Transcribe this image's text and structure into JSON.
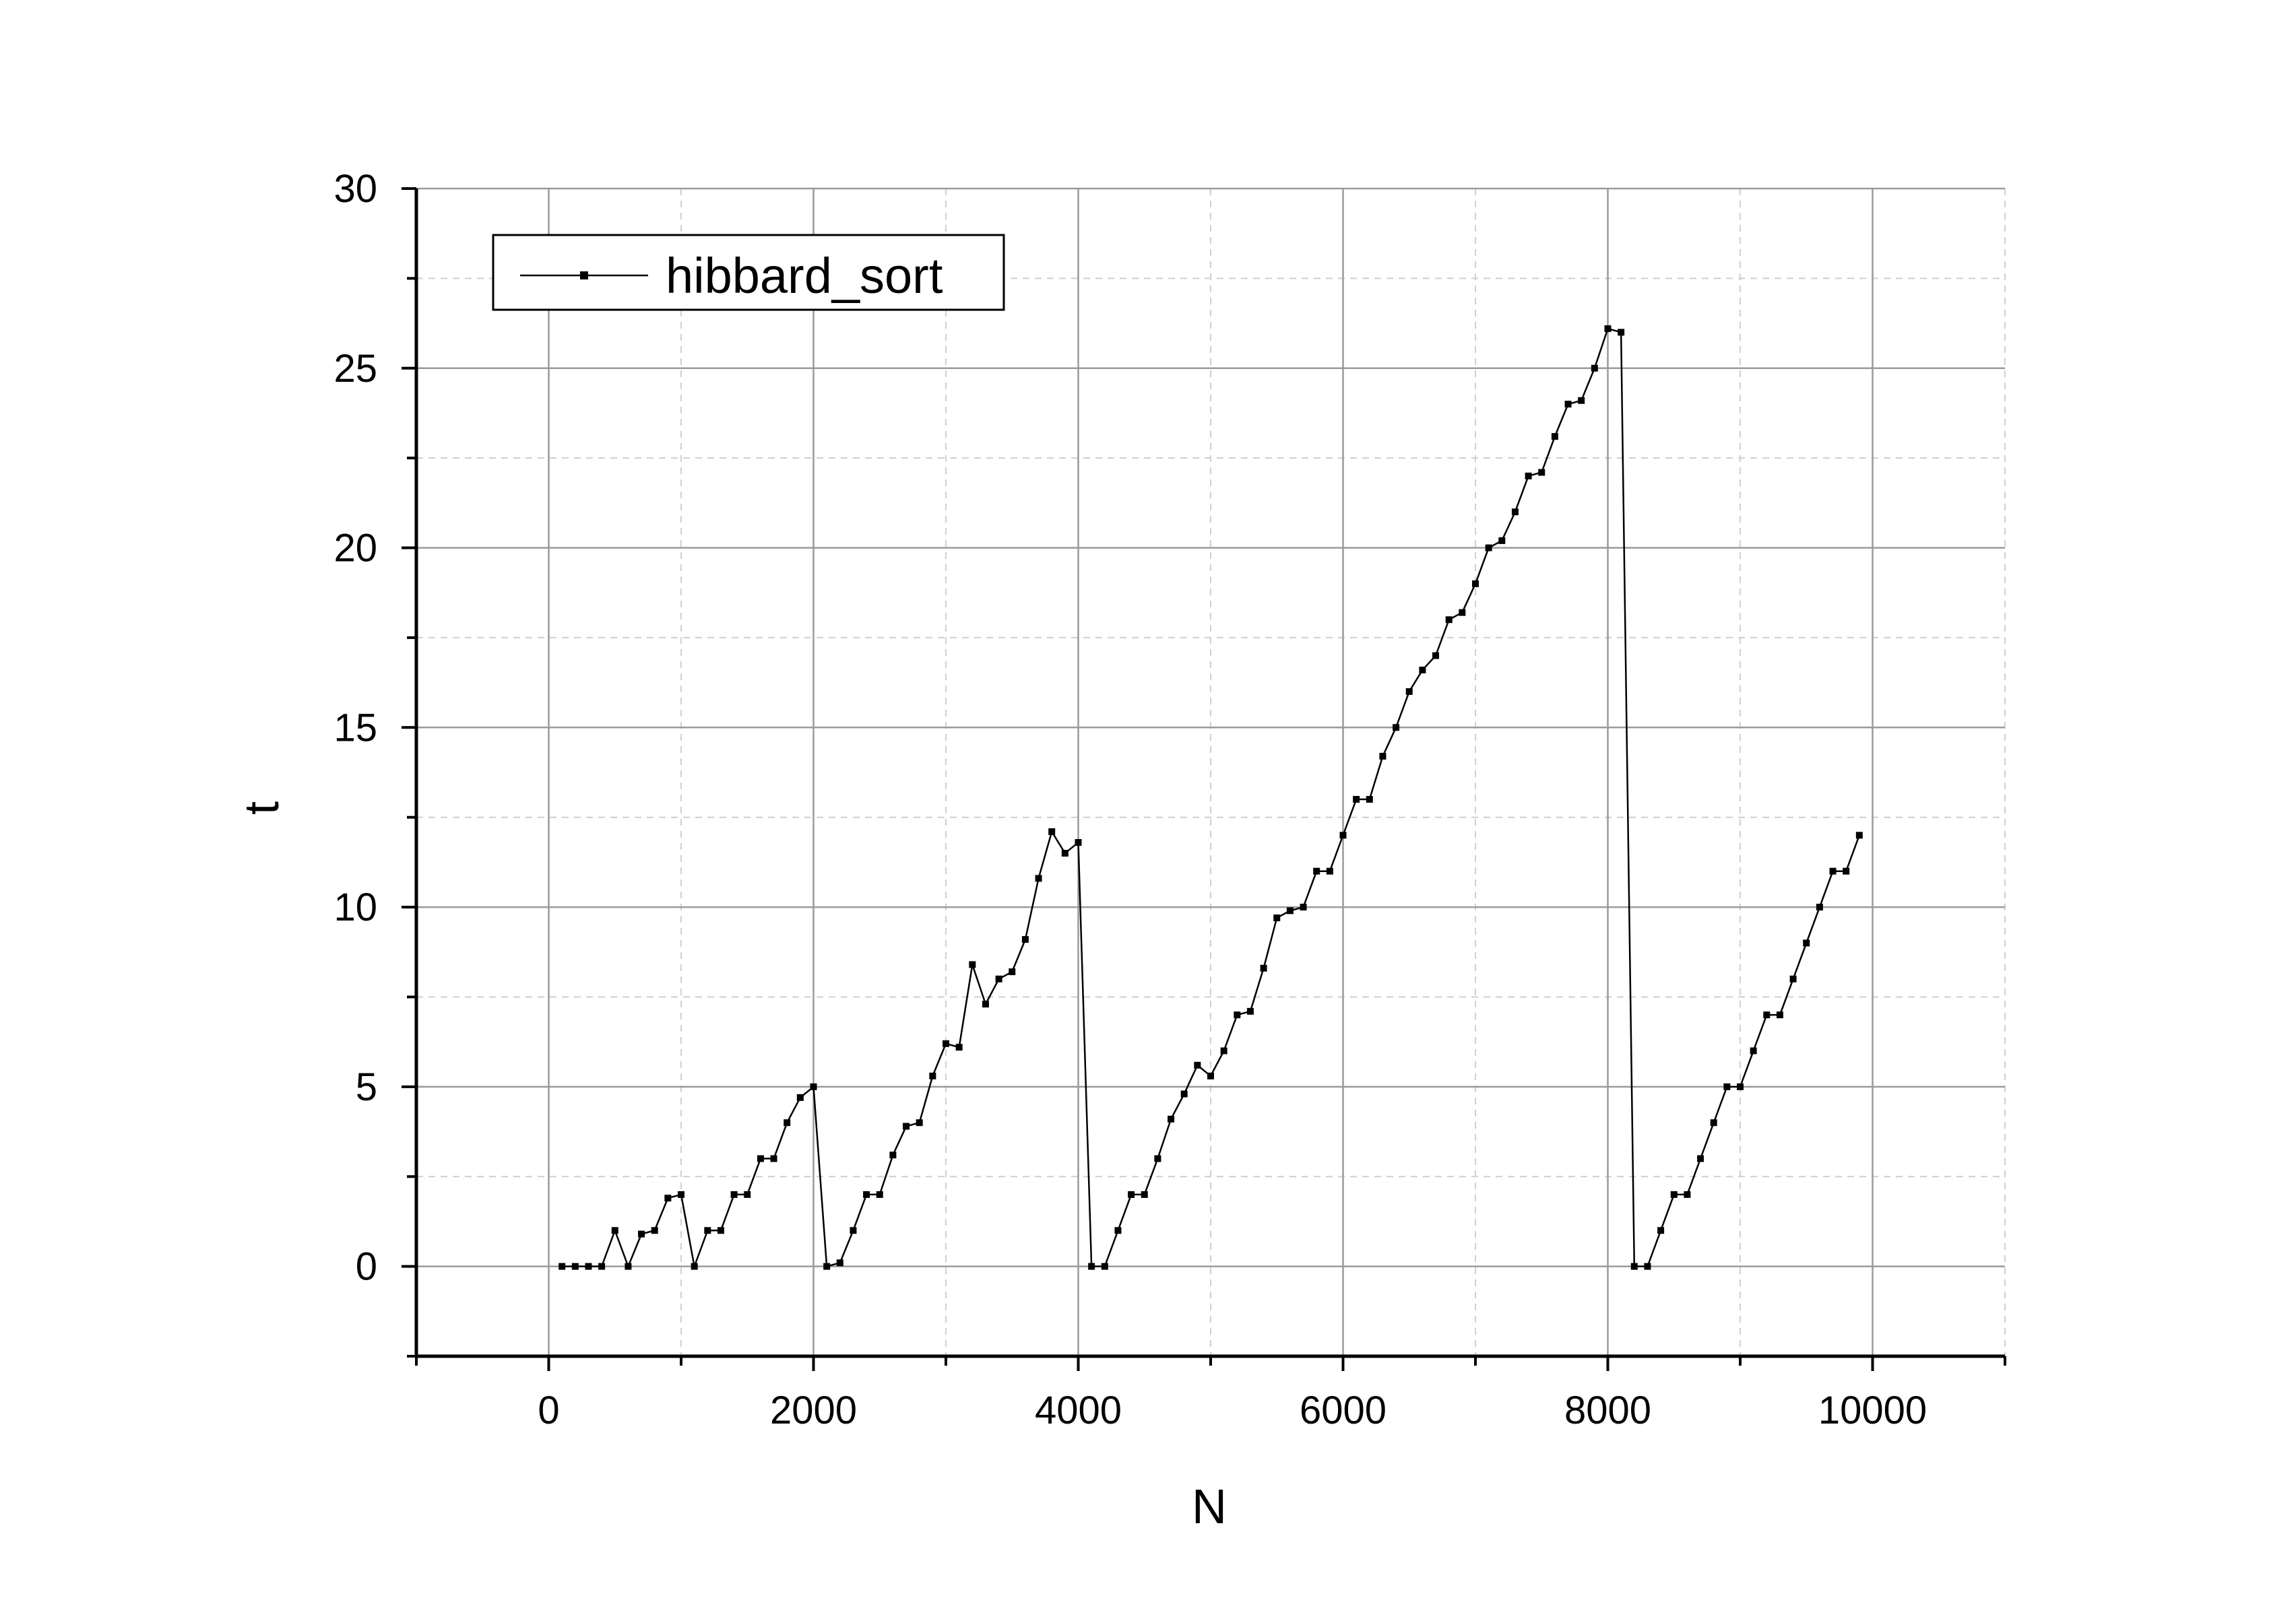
{
  "chart_data": {
    "type": "line",
    "title": "",
    "xlabel": "N",
    "ylabel": "t",
    "xlim": [
      -1000,
      11000
    ],
    "ylim": [
      -2.5,
      30
    ],
    "xticks": [
      0,
      2000,
      4000,
      6000,
      8000,
      10000
    ],
    "yticks": [
      0,
      5,
      10,
      15,
      20,
      25,
      30
    ],
    "grid": true,
    "legend": {
      "placement": "top-left",
      "entries": [
        "hibbard_sort"
      ]
    },
    "series": [
      {
        "name": "hibbard_sort",
        "color": "#000000",
        "marker": "square",
        "x": [
          100,
          200,
          300,
          400,
          500,
          600,
          700,
          800,
          900,
          1000,
          1100,
          1200,
          1300,
          1400,
          1500,
          1600,
          1700,
          1800,
          1900,
          2000,
          2100,
          2200,
          2300,
          2400,
          2500,
          2600,
          2700,
          2800,
          2900,
          3000,
          3100,
          3200,
          3300,
          3400,
          3500,
          3600,
          3700,
          3800,
          3900,
          4000,
          4100,
          4200,
          4300,
          4400,
          4500,
          4600,
          4700,
          4800,
          4900,
          5000,
          5100,
          5200,
          5300,
          5400,
          5500,
          5600,
          5700,
          5800,
          5900,
          6000,
          6100,
          6200,
          6300,
          6400,
          6500,
          6600,
          6700,
          6800,
          6900,
          7000,
          7100,
          7200,
          7300,
          7400,
          7500,
          7600,
          7700,
          7800,
          7900,
          8000,
          8100,
          8200,
          8300,
          8400,
          8500,
          8600,
          8700,
          8800,
          8900,
          9000,
          9100,
          9200,
          9300,
          9400,
          9500,
          9600,
          9700,
          9800,
          9900
        ],
        "values": [
          0,
          0,
          0,
          0,
          1,
          0,
          0.9,
          1,
          1.9,
          2,
          0,
          1,
          1,
          2,
          2,
          3,
          3,
          4,
          4.7,
          5,
          0,
          0.1,
          1,
          2,
          2,
          3.1,
          3.9,
          4,
          5.3,
          6.2,
          6.1,
          8.4,
          7.3,
          8,
          8.2,
          9.1,
          10.8,
          12.1,
          11.5,
          11.8,
          0,
          0,
          1,
          2,
          2,
          3,
          4.1,
          4.8,
          5.6,
          5.3,
          6,
          7,
          7.1,
          8.3,
          9.7,
          9.9,
          10,
          11,
          11,
          12,
          13,
          13,
          14.2,
          15,
          16,
          16.6,
          17,
          18,
          18.2,
          19,
          20,
          20.2,
          21,
          22,
          22.1,
          23.1,
          24,
          24.1,
          25,
          26.1,
          26,
          0,
          0,
          1,
          2,
          2,
          3,
          4,
          5,
          5,
          6,
          7,
          7,
          8,
          9,
          10,
          11,
          11,
          12
        ]
      }
    ]
  }
}
